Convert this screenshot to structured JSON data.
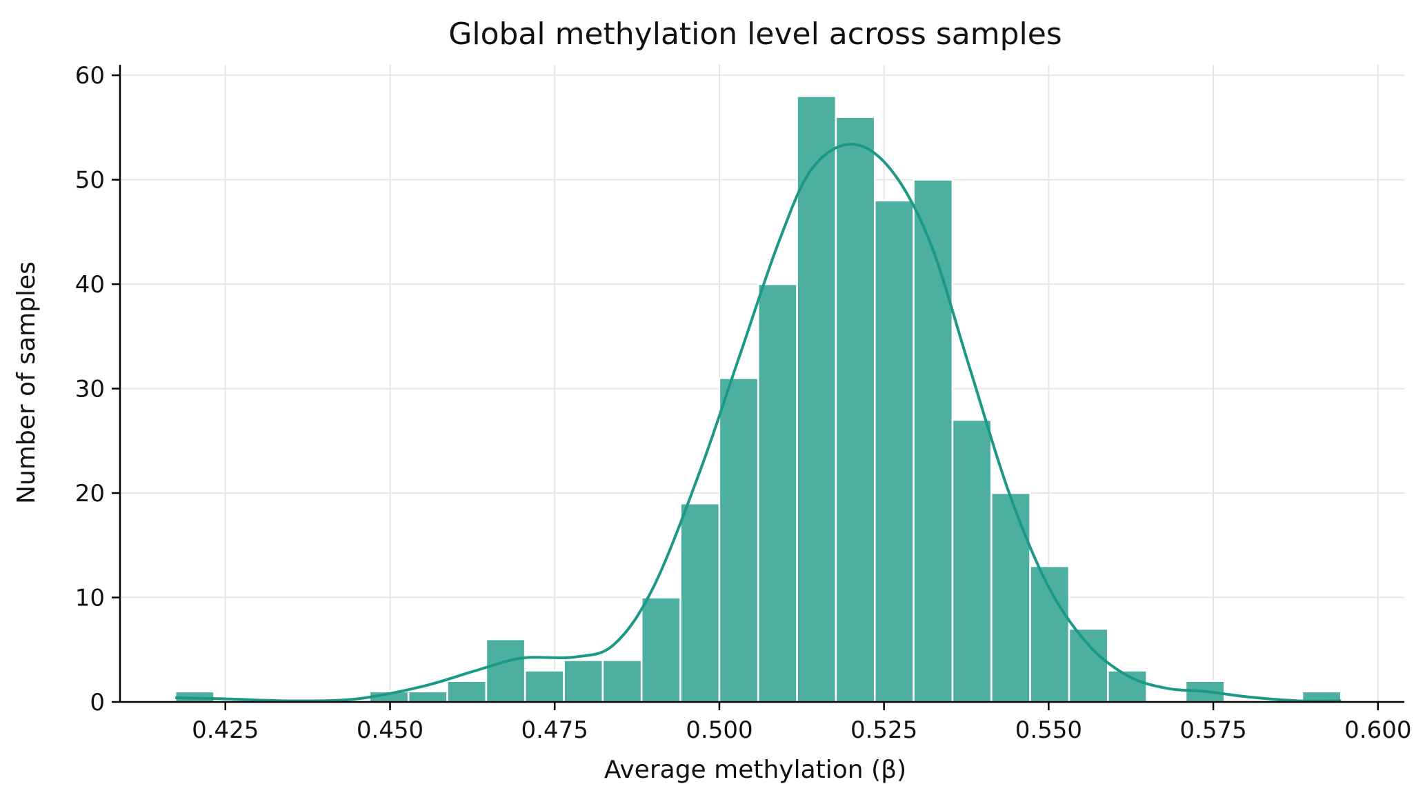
{
  "chart_data": {
    "type": "bar",
    "title": "Global methylation level across samples",
    "xlabel": "Average methylation (β)",
    "ylabel": "Number of samples",
    "xlim": [
      0.409,
      0.604
    ],
    "ylim": [
      0,
      61
    ],
    "xticks": [
      "0.425",
      "0.450",
      "0.475",
      "0.500",
      "0.525",
      "0.550",
      "0.575",
      "0.600"
    ],
    "yticks": [
      "0",
      "10",
      "20",
      "30",
      "40",
      "50",
      "60"
    ],
    "grid": true,
    "bin_width": 0.00589,
    "bins": [
      {
        "x0": 0.4174,
        "count": 1
      },
      {
        "x0": 0.4469,
        "count": 1
      },
      {
        "x0": 0.4528,
        "count": 1
      },
      {
        "x0": 0.4587,
        "count": 2
      },
      {
        "x0": 0.4646,
        "count": 6
      },
      {
        "x0": 0.4705,
        "count": 3
      },
      {
        "x0": 0.4764,
        "count": 4
      },
      {
        "x0": 0.4823,
        "count": 4
      },
      {
        "x0": 0.4882,
        "count": 10
      },
      {
        "x0": 0.4941,
        "count": 19
      },
      {
        "x0": 0.5,
        "count": 31
      },
      {
        "x0": 0.5059,
        "count": 40
      },
      {
        "x0": 0.5118,
        "count": 58
      },
      {
        "x0": 0.5177,
        "count": 56
      },
      {
        "x0": 0.5236,
        "count": 48
      },
      {
        "x0": 0.5295,
        "count": 50
      },
      {
        "x0": 0.5354,
        "count": 27
      },
      {
        "x0": 0.5413,
        "count": 20
      },
      {
        "x0": 0.5472,
        "count": 13
      },
      {
        "x0": 0.5531,
        "count": 7
      },
      {
        "x0": 0.559,
        "count": 3
      },
      {
        "x0": 0.5708,
        "count": 2
      },
      {
        "x0": 0.5885,
        "count": 1
      }
    ],
    "kde": {
      "x": [
        0.4174,
        0.425,
        0.435,
        0.445,
        0.455,
        0.463,
        0.47,
        0.478,
        0.484,
        0.49,
        0.497,
        0.503,
        0.509,
        0.514,
        0.52,
        0.526,
        0.532,
        0.538,
        0.544,
        0.55,
        0.556,
        0.562,
        0.568,
        0.574,
        0.58,
        0.588,
        0.5944
      ],
      "y": [
        0.4,
        0.3,
        0.1,
        0.3,
        1.5,
        3.0,
        4.2,
        4.3,
        5.5,
        11,
        22,
        33,
        44,
        51,
        53.4,
        51,
        44,
        32,
        20,
        11,
        5.5,
        2.5,
        1.3,
        1.0,
        0.5,
        0.1,
        0.1
      ]
    },
    "colors": {
      "bar_fill": "#4daf9f",
      "kde_line": "#1b9986"
    }
  }
}
